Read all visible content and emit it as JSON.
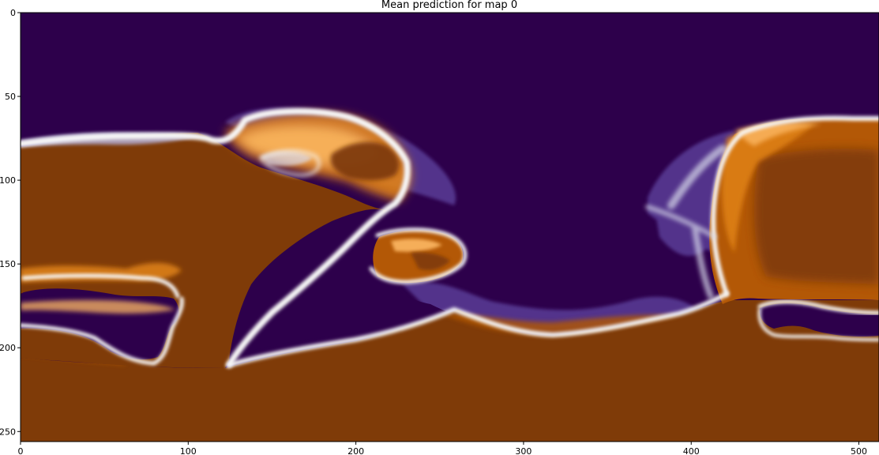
{
  "chart_data": {
    "type": "heatmap",
    "title": "Mean prediction for map 0",
    "xlabel": "",
    "ylabel": "",
    "colormap": "PuOr_r",
    "colors": {
      "low": "#2d004b",
      "mid": "#f7f7f7",
      "high": "#7f3b08",
      "mid_low": "#5a3c97",
      "mid_high": "#e08214"
    },
    "image_size": [
      512,
      256
    ],
    "xlim": [
      0,
      512
    ],
    "ylim": [
      256,
      0
    ],
    "xticks": [
      0,
      100,
      200,
      300,
      400,
      500
    ],
    "yticks": [
      0,
      50,
      100,
      150,
      200,
      250
    ],
    "grid": false,
    "legend": "none",
    "regions": [
      {
        "name": "top-purple",
        "level": 0.0
      },
      {
        "name": "bottom-orange",
        "level": 1.0
      },
      {
        "name": "left-brown-lobe",
        "level": 1.0
      },
      {
        "name": "right-orange-lobe",
        "level": 0.8
      },
      {
        "name": "central-purple-pocket",
        "level": 0.0
      },
      {
        "name": "left-purple-pocket",
        "level": 0.0
      },
      {
        "name": "right-purple-pocket",
        "level": 0.0
      }
    ]
  }
}
